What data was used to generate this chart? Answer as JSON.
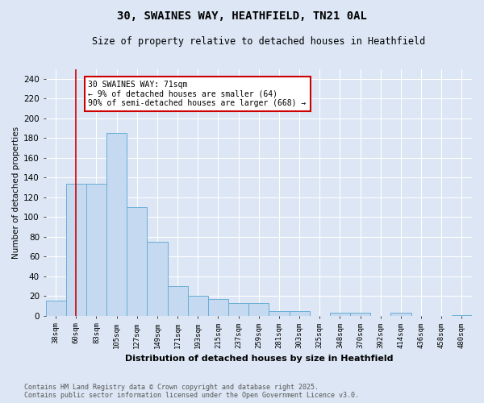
{
  "title_line1": "30, SWAINES WAY, HEATHFIELD, TN21 0AL",
  "title_line2": "Size of property relative to detached houses in Heathfield",
  "xlabel": "Distribution of detached houses by size in Heathfield",
  "ylabel": "Number of detached properties",
  "categories": [
    "38sqm",
    "60sqm",
    "83sqm",
    "105sqm",
    "127sqm",
    "149sqm",
    "171sqm",
    "193sqm",
    "215sqm",
    "237sqm",
    "259sqm",
    "281sqm",
    "303sqm",
    "325sqm",
    "348sqm",
    "370sqm",
    "392sqm",
    "414sqm",
    "436sqm",
    "458sqm",
    "480sqm"
  ],
  "values": [
    15,
    134,
    134,
    185,
    110,
    75,
    30,
    20,
    17,
    13,
    13,
    5,
    5,
    0,
    3,
    3,
    0,
    3,
    0,
    0,
    1
  ],
  "bar_color": "#c5d9f0",
  "bar_edge_color": "#6baed6",
  "bg_color": "#dce6f4",
  "grid_color": "#ffffff",
  "red_line_index": 1,
  "red_line_color": "#cc0000",
  "annotation_text": "30 SWAINES WAY: 71sqm\n← 9% of detached houses are smaller (64)\n90% of semi-detached houses are larger (668) →",
  "annotation_box_facecolor": "#ffffff",
  "annotation_box_edgecolor": "#cc0000",
  "ylim": [
    0,
    250
  ],
  "yticks": [
    0,
    20,
    40,
    60,
    80,
    100,
    120,
    140,
    160,
    180,
    200,
    220,
    240
  ],
  "footer": "Contains HM Land Registry data © Crown copyright and database right 2025.\nContains public sector information licensed under the Open Government Licence v3.0."
}
